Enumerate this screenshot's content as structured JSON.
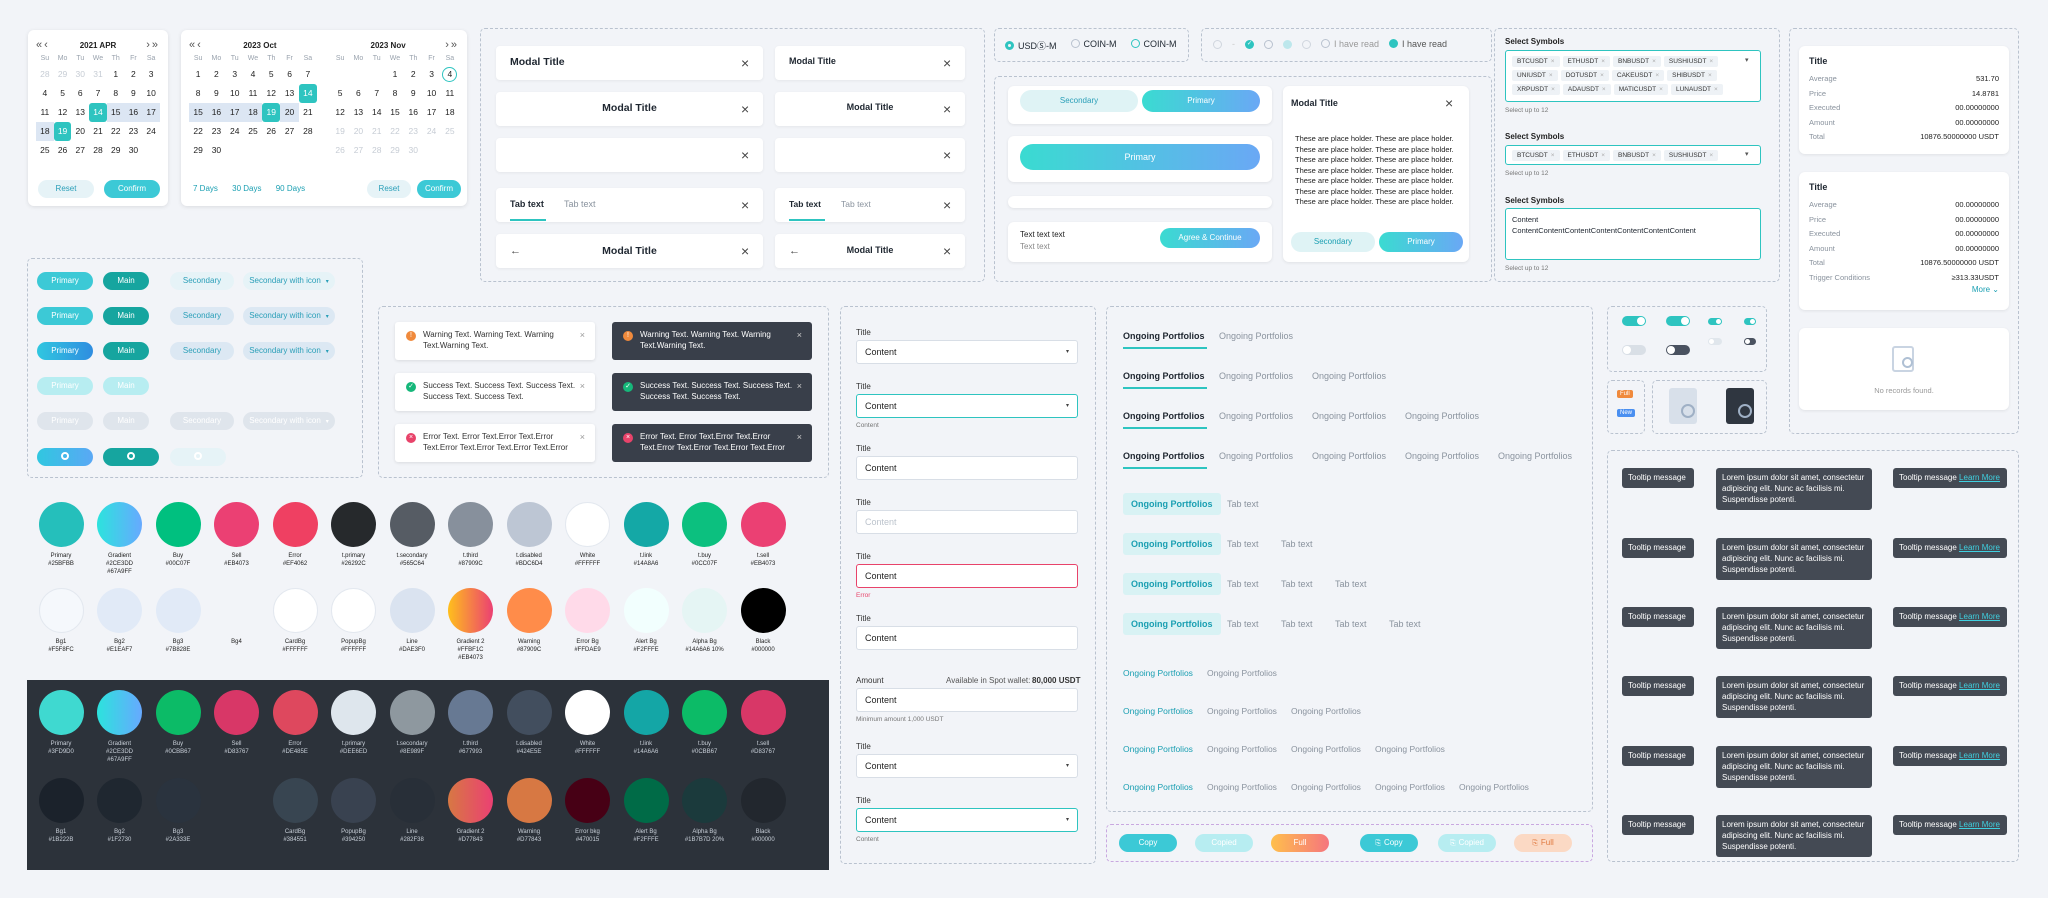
{
  "calendar1": {
    "month": "2021 APR",
    "weekdays": [
      "Su",
      "Mo",
      "Tu",
      "We",
      "Th",
      "Fr",
      "Sa"
    ],
    "days": [
      "28",
      "29",
      "30",
      "31",
      "1",
      "2",
      "3",
      "4",
      "5",
      "6",
      "7",
      "8",
      "9",
      "10",
      "11",
      "12",
      "13",
      "14",
      "15",
      "16",
      "17",
      "18",
      "19",
      "20",
      "21",
      "22",
      "23",
      "24",
      "25",
      "26",
      "27",
      "28",
      "29",
      "30"
    ],
    "reset": "Reset",
    "confirm": "Confirm"
  },
  "calendar2": {
    "month_left": "2023 Oct",
    "month_right": "2023 Nov",
    "days_left": [
      "1",
      "2",
      "3",
      "4",
      "5",
      "6",
      "7",
      "8",
      "9",
      "10",
      "11",
      "12",
      "13",
      "14",
      "15",
      "16",
      "17",
      "18",
      "19",
      "20",
      "21",
      "22",
      "23",
      "24",
      "25",
      "26",
      "27",
      "28",
      "29",
      "30"
    ],
    "days_right": [
      "1",
      "2",
      "3",
      "4",
      "5",
      "6",
      "7",
      "8",
      "9",
      "10",
      "11",
      "12",
      "13",
      "14",
      "15",
      "16",
      "17",
      "18",
      "19",
      "20",
      "21",
      "22",
      "23",
      "24",
      "25",
      "26",
      "27",
      "28",
      "29",
      "30"
    ],
    "quick": [
      "7 Days",
      "30 Days",
      "90 Days"
    ],
    "reset": "Reset",
    "confirm": "Confirm"
  },
  "modals": {
    "title": "Modal Title",
    "tab1": "Tab text",
    "tab2": "Tab text"
  },
  "radios": [
    "USDⓈ-M",
    "COIN-M",
    "COIN-M"
  ],
  "checks": {
    "read1": "I have read",
    "read2": "I have read"
  },
  "buttons": {
    "secondary": "Secondary",
    "primary": "Primary",
    "main": "Main",
    "sec_icon": "Secondary with icon",
    "agree": "Agree & Continue",
    "text1": "Text text text",
    "text2": "Text text"
  },
  "modal_body": {
    "title": "Modal Title",
    "text": "These are place holder. These are place holder. These are place holder. These are place holder. These are place holder. These are place holder. These are place holder. These are place holder. These are place holder. These are place holder. These are place holder. These are place holder. These are place holder. These are place holder.",
    "secondary": "Secondary",
    "primary": "Primary"
  },
  "symbols": {
    "label": "Select Symbols",
    "help": "Select up to 12",
    "chips1": [
      "BTCUSDT",
      "ETHUSDT",
      "BNBUSDT",
      "SUSHIUSDT",
      "UNIUSDT",
      "DOTUSDT",
      "CAKEUSDT",
      "SHIBUSDT",
      "XRPUSDT",
      "ADAUSDT",
      "MATICUSDT",
      "LUNAUSDT"
    ],
    "chips2": [
      "BTCUSDT",
      "ETHUSDT",
      "BNBUSDT",
      "SUSHIUSDT"
    ],
    "content_label": "Content",
    "content_value": "ContentContentContentContentContentContentContent"
  },
  "summary1": {
    "title": "Title",
    "rows": [
      [
        "Average",
        "531.70"
      ],
      [
        "Price",
        "14.8781"
      ],
      [
        "Executed",
        "00.00000000"
      ],
      [
        "Amount",
        "00.00000000"
      ],
      [
        "Total",
        "10876.50000000 USDT"
      ]
    ]
  },
  "summary2": {
    "title": "Title",
    "rows": [
      [
        "Average",
        "00.00000000"
      ],
      [
        "Price",
        "00.00000000"
      ],
      [
        "Executed",
        "00.00000000"
      ],
      [
        "Amount",
        "00.00000000"
      ],
      [
        "Total",
        "10876.50000000 USDT"
      ],
      [
        "Trigger Conditions",
        "≥313.33USDT"
      ]
    ],
    "more": "More"
  },
  "empty": {
    "text": "No records found."
  },
  "toasts": {
    "warning": "Warning Text. Warning Text. Warning Text.Warning Text.",
    "success": "Success Text. Success Text. Success Text. Success Text. Success Text.",
    "error": "Error Text. Error Text.Error Text.Error Text.Error Text.Error Text.Error Text.Error"
  },
  "colors_light": [
    [
      "Primary",
      "#25BFBB"
    ],
    [
      "Gradient",
      "#2CE3DD #67A9FF"
    ],
    [
      "Buy",
      "#00C07F"
    ],
    [
      "Sell",
      "#EB4073"
    ],
    [
      "Error",
      "#EF4062"
    ],
    [
      "t.primary",
      "#26292C"
    ],
    [
      "t.secondary",
      "#565C64"
    ],
    [
      "t.third",
      "#87909C"
    ],
    [
      "t.disabled",
      "#BDC6D4"
    ],
    [
      "White",
      "#FFFFFF"
    ],
    [
      "t.link",
      "#14A8A6"
    ],
    [
      "t.buy",
      "#0CC07F"
    ],
    [
      "t.sell",
      "#EB4073"
    ]
  ],
  "colors_light2": [
    [
      "Bg1",
      "#F5F8FC"
    ],
    [
      "Bg2",
      "#E1EAF7"
    ],
    [
      "Bg3",
      "#7B828E"
    ],
    [
      "Bg4",
      ""
    ],
    [
      "CardBg",
      "#FFFFFF"
    ],
    [
      "PopupBg",
      "#FFFFFF"
    ],
    [
      "Line",
      "#DAE3F0"
    ],
    [
      "Gradient 2",
      "#FFBF1C #EB4073"
    ],
    [
      "Warning",
      "#87909C"
    ],
    [
      "Error Bg",
      "#FFDAE9"
    ],
    [
      "Alert Bg",
      "#F2FFFE"
    ],
    [
      "Alpha Bg",
      "#14A6A6 10%"
    ],
    [
      "Black",
      "#000000"
    ]
  ],
  "colors_dark": [
    [
      "Primary",
      "#3FD9D0"
    ],
    [
      "Gradient",
      "#2CE3DD #67A9FF"
    ],
    [
      "Buy",
      "#0CBB67"
    ],
    [
      "Sell",
      "#D83767"
    ],
    [
      "Error",
      "#DE485E"
    ],
    [
      "t.primary",
      "#DEE6ED"
    ],
    [
      "t.secondary",
      "#8E989F"
    ],
    [
      "t.third",
      "#677993"
    ],
    [
      "t.disabled",
      "#424E5E"
    ],
    [
      "White",
      "#FFFFFF"
    ],
    [
      "t.link",
      "#14A6A6"
    ],
    [
      "t.buy",
      "#0CBB67"
    ],
    [
      "t.sell",
      "#D83767"
    ]
  ],
  "colors_dark2": [
    [
      "Bg1",
      "#1B222B"
    ],
    [
      "Bg2",
      "#1F2730"
    ],
    [
      "Bg3",
      "#2A333E"
    ],
    [
      "",
      ""
    ],
    [
      "CardBg",
      "#384551"
    ],
    [
      "PopupBg",
      "#394250"
    ],
    [
      "Line",
      "#282F38"
    ],
    [
      "Gradient 2",
      "#D77843"
    ],
    [
      "Warning",
      "#D77843"
    ],
    [
      "Error bkg",
      "#470015"
    ],
    [
      "Alert Bg",
      "#F2FFFE"
    ],
    [
      "Alpha Bg",
      "#1B7B7D 20%"
    ],
    [
      "Black",
      "#000000"
    ]
  ],
  "form": {
    "title": "Title",
    "content": "Content",
    "error": "Error",
    "amount": "Amount",
    "available": "Available in Spot wallet:",
    "available_value": "80,000 USDT",
    "min": "Minimum amount 1,000 USDT"
  },
  "portfolio": {
    "tab": "Ongoing Portfolios",
    "tab_text": "Tab text"
  },
  "tooltips": {
    "short": "Tooltip message",
    "long": "Lorem ipsum dolor sit amet, consectetur adipiscing elit. Nunc ac facilisis mi. Suspendisse potenti.",
    "learn": "Learn More"
  },
  "copy": {
    "copy": "Copy",
    "copied": "Copied",
    "full": "Full"
  },
  "badges": {
    "full": "Full",
    "new": "New"
  }
}
